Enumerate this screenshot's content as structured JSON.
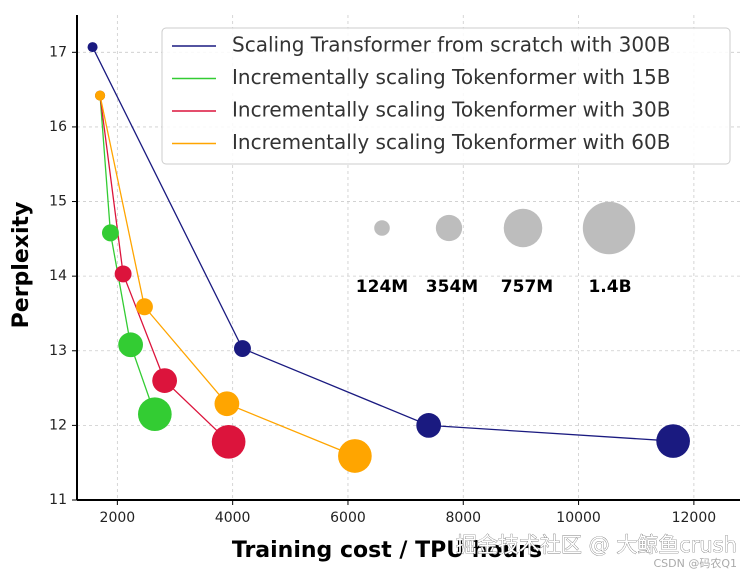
{
  "chart_data": {
    "type": "bubble-line",
    "xlabel": "Training cost / TPU hours",
    "ylabel": "Perplexity",
    "xlim": [
      1300,
      12800
    ],
    "ylim": [
      11,
      17.5
    ],
    "xticks": [
      2000,
      4000,
      6000,
      8000,
      10000,
      12000
    ],
    "yticks": [
      11,
      12,
      13,
      14,
      15,
      16,
      17
    ],
    "grid": true,
    "legend": "upper right",
    "series": [
      {
        "name": "Scaling Transformer from scratch with 300B",
        "color": "#1a1a80",
        "x": [
          1570,
          4170,
          7400,
          11640
        ],
        "values": [
          17.07,
          13.03,
          12.0,
          11.79
        ],
        "sizes": [
          124,
          354,
          757,
          1400
        ]
      },
      {
        "name": "Incrementally scaling Tokenformer with 15B",
        "color": "#33cc33",
        "x": [
          1700,
          1880,
          2230,
          2650
        ],
        "values": [
          16.42,
          14.58,
          13.08,
          12.15
        ],
        "sizes": [
          124,
          354,
          757,
          1400
        ]
      },
      {
        "name": "Incrementally scaling Tokenformer with 30B",
        "color": "#dc143c",
        "x": [
          1700,
          2100,
          2820,
          3930
        ],
        "values": [
          16.42,
          14.03,
          12.6,
          11.78
        ],
        "sizes": [
          124,
          354,
          757,
          1400
        ]
      },
      {
        "name": "Incrementally scaling Tokenformer with 60B",
        "color": "#ffa500",
        "x": [
          1700,
          2470,
          3900,
          6120
        ],
        "values": [
          16.42,
          13.59,
          12.29,
          11.59
        ],
        "sizes": [
          124,
          354,
          757,
          1400
        ]
      }
    ],
    "size_legend": [
      {
        "label": "124M",
        "size": 124
      },
      {
        "label": "354M",
        "size": 354
      },
      {
        "label": "757M",
        "size": 757
      },
      {
        "label": "1.4B",
        "size": 1400
      }
    ],
    "size_legend_color": "#bdbdbd",
    "watermarks": [
      "掘金技术社区 @ 大鲸鱼crush",
      "CSDN @码农Q1"
    ]
  }
}
